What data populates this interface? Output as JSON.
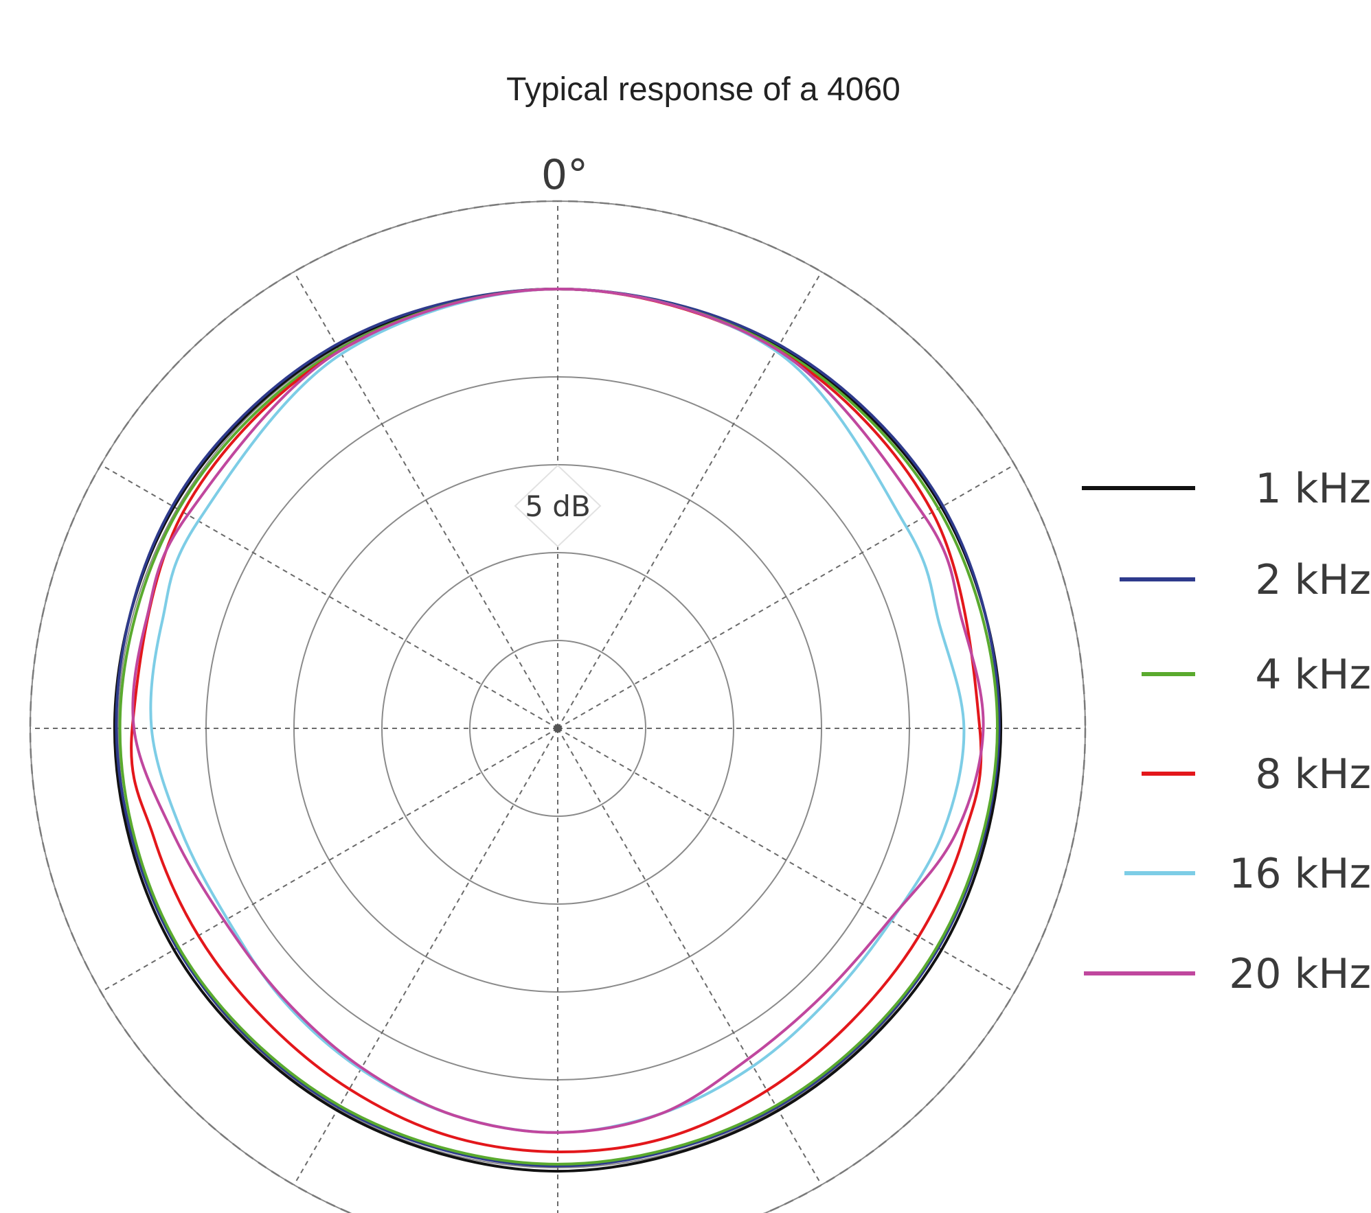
{
  "chart_data": {
    "type": "polar",
    "title": "Typical response of a 4060",
    "angle_label": "0°",
    "scale_label": "5 dB",
    "radial_grid_db": [
      5,
      10,
      15,
      20,
      25,
      30
    ],
    "angular_grid_deg": [
      0,
      30,
      60,
      90,
      120,
      150,
      180,
      210,
      240,
      270,
      300,
      330
    ],
    "legend_placement": "right",
    "series": [
      {
        "name": "1 kHz",
        "color": "#111111",
        "angles": [
          0,
          30,
          60,
          90,
          120,
          150,
          180,
          210,
          240,
          270,
          300,
          330,
          360
        ],
        "values": [
          25.0,
          25.1,
          25.2,
          25.2,
          25.2,
          25.1,
          25.2,
          25.1,
          25.2,
          25.2,
          25.2,
          25.1,
          25.0
        ]
      },
      {
        "name": "2 kHz",
        "color": "#2e3a8c",
        "angles": [
          0,
          30,
          60,
          90,
          120,
          150,
          180,
          210,
          240,
          270,
          300,
          330,
          360
        ],
        "values": [
          25.0,
          25.2,
          25.3,
          25.1,
          25.0,
          24.9,
          24.9,
          24.9,
          25.0,
          25.1,
          25.3,
          25.2,
          25.0
        ]
      },
      {
        "name": "4 kHz",
        "color": "#5aaa2e",
        "angles": [
          0,
          30,
          60,
          90,
          120,
          150,
          180,
          210,
          240,
          270,
          300,
          330,
          360
        ],
        "values": [
          25.0,
          25.0,
          25.0,
          25.0,
          24.9,
          24.8,
          24.8,
          24.8,
          24.9,
          24.9,
          24.9,
          24.9,
          25.0
        ]
      },
      {
        "name": "8 kHz",
        "color": "#e3171b",
        "angles": [
          0,
          30,
          60,
          90,
          105,
          120,
          135,
          150,
          165,
          180,
          195,
          210,
          225,
          240,
          255,
          270,
          300,
          330,
          360
        ],
        "values": [
          25.0,
          24.9,
          24.6,
          24.0,
          23.9,
          23.7,
          23.6,
          23.8,
          24.1,
          24.1,
          24.0,
          23.7,
          23.5,
          23.6,
          23.8,
          24.2,
          24.6,
          24.8,
          25.0
        ]
      },
      {
        "name": "16 kHz",
        "color": "#7dcde6",
        "angles": [
          0,
          30,
          60,
          75,
          90,
          105,
          120,
          135,
          150,
          165,
          180,
          195,
          210,
          225,
          240,
          255,
          270,
          285,
          300,
          330,
          360
        ],
        "values": [
          25.0,
          24.8,
          22.9,
          22.5,
          23.1,
          22.7,
          21.9,
          21.8,
          22.2,
          22.7,
          23.0,
          22.8,
          22.4,
          22.0,
          21.7,
          22.2,
          23.1,
          23.3,
          23.6,
          24.6,
          25.0
        ]
      },
      {
        "name": "20 kHz",
        "color": "#c0479e",
        "angles": [
          0,
          30,
          60,
          75,
          90,
          105,
          120,
          135,
          150,
          165,
          180,
          195,
          210,
          225,
          240,
          255,
          270,
          285,
          300,
          330,
          360
        ],
        "values": [
          25.0,
          24.9,
          24.1,
          23.8,
          24.2,
          23.4,
          21.8,
          21.4,
          21.7,
          22.7,
          23.0,
          22.8,
          22.3,
          21.9,
          21.9,
          22.7,
          24.1,
          24.2,
          24.3,
          24.8,
          25.0
        ]
      }
    ]
  }
}
